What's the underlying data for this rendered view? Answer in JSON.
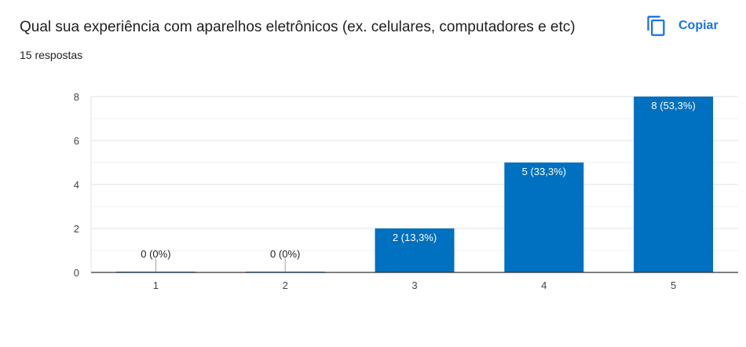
{
  "question": {
    "title": "Qual sua experiência com aparelhos eletrônicos (ex. celulares, computadores e etc)",
    "responses": "15 respostas"
  },
  "copy_button": {
    "label": "Copiar",
    "icon": "copy-icon",
    "color": "#1a73e8"
  },
  "chart_data": {
    "type": "bar",
    "categories": [
      "1",
      "2",
      "3",
      "4",
      "5"
    ],
    "values": [
      0,
      0,
      2,
      5,
      8
    ],
    "data_labels": [
      "0 (0%)",
      "0 (0%)",
      "2 (13,3%)",
      "5 (33,3%)",
      "8 (53,3%)"
    ],
    "yticks": [
      0,
      2,
      4,
      6,
      8
    ],
    "ylim": [
      0,
      8
    ],
    "grid": true,
    "bar_color": "#0070c0",
    "title": "",
    "xlabel": "",
    "ylabel": ""
  }
}
